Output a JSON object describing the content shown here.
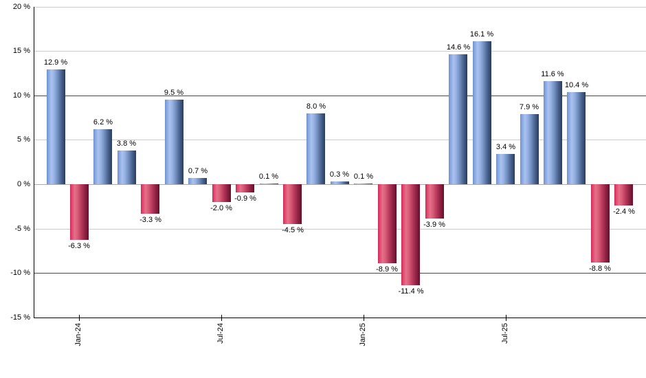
{
  "chart_data": {
    "type": "bar",
    "title": "",
    "xlabel": "",
    "ylabel": "",
    "ylim": [
      -15,
      20
    ],
    "grid": true,
    "legend": "none",
    "values": [
      12.9,
      -6.3,
      6.2,
      3.8,
      -3.3,
      9.5,
      0.7,
      -2.0,
      -0.9,
      0.1,
      -4.5,
      8.0,
      0.3,
      0.1,
      -8.9,
      -11.4,
      -3.9,
      14.6,
      16.1,
      3.4,
      7.9,
      11.6,
      10.4,
      -8.8,
      -2.4
    ],
    "bar_labels": [
      "12.9 %",
      "-6.3 %",
      "6.2 %",
      "3.8 %",
      "-3.3 %",
      "9.5 %",
      "0.7 %",
      "-2.0 %",
      "-0.9 %",
      "0.1 %",
      "-4.5 %",
      "8.0 %",
      "0.3 %",
      "0.1 %",
      "-8.9 %",
      "-11.4 %",
      "-3.9 %",
      "14.6 %",
      "16.1 %",
      "3.4 %",
      "7.9 %",
      "11.6 %",
      "10.4 %",
      "-8.8 %",
      "-2.4 %"
    ],
    "x_tick_labels": [
      {
        "bar_index": 1,
        "label": "Jan-24"
      },
      {
        "bar_index": 7,
        "label": "Jul-24"
      },
      {
        "bar_index": 13,
        "label": "Jan-25"
      },
      {
        "bar_index": 19,
        "label": "Jul-25"
      }
    ],
    "y_ticks": [
      {
        "value": 20,
        "label": "20 %"
      },
      {
        "value": 15,
        "label": "15 %"
      },
      {
        "value": 10,
        "label": "10 %"
      },
      {
        "value": 5,
        "label": "5 %"
      },
      {
        "value": 0,
        "label": "0 %"
      },
      {
        "value": -5,
        "label": "-5 %"
      },
      {
        "value": -10,
        "label": "-10 %"
      },
      {
        "value": -15,
        "label": "-15 %"
      }
    ],
    "reference_lines": [
      {
        "value": 10,
        "color": "#007a00"
      },
      {
        "value": -10,
        "color": "#007a00"
      }
    ],
    "colors": {
      "positive_base": "#7fa3e0",
      "negative_base": "#cc2855",
      "positive_gradient": [
        "#6288c8",
        "#7b9cda",
        "#a9c2ee",
        "#96b2e4",
        "#6f8cbd",
        "#48608c",
        "#30456a",
        "#293c5c"
      ],
      "negative_gradient": [
        "#c01f4c",
        "#dd3663",
        "#e5708a",
        "#d95c78",
        "#b83a5c",
        "#8e2242",
        "#701330",
        "#670f2b"
      ],
      "gridline": "#cccccc",
      "zero_line": "#aaaaaa",
      "axis": "#000000",
      "reference": "#007a00",
      "label_text": "#000000",
      "background": "#ffffff"
    }
  }
}
